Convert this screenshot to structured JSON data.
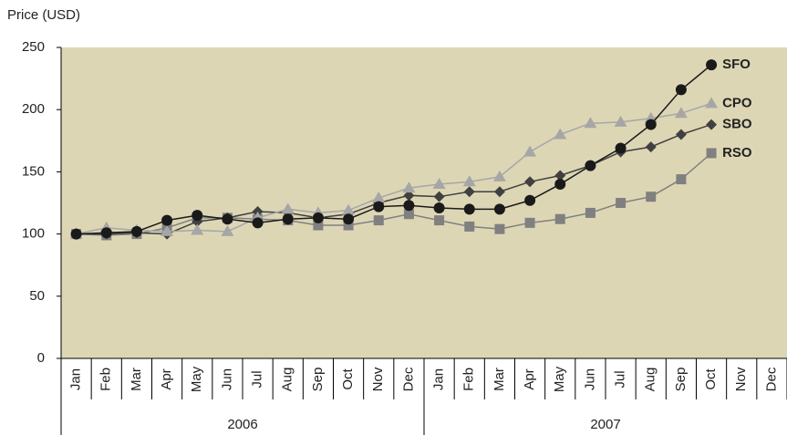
{
  "chart_data": {
    "type": "line",
    "y_label": "Price (USD)",
    "categories": [
      "Jan",
      "Feb",
      "Mar",
      "Apr",
      "May",
      "Jun",
      "Jul",
      "Aug",
      "Sep",
      "Oct",
      "Nov",
      "Dec",
      "Jan",
      "Feb",
      "Mar",
      "Apr",
      "May",
      "Jun",
      "Jul",
      "Aug",
      "Sep",
      "Oct",
      "Nov",
      "Dec"
    ],
    "groups": [
      "2006",
      "2007"
    ],
    "ylim": [
      0,
      250
    ],
    "yticks": [
      0,
      50,
      100,
      150,
      200,
      250
    ],
    "background": "#ddd6b5",
    "series": [
      {
        "name": "SFO",
        "color": "#1a1a1a",
        "marker": "circle",
        "values": [
          100,
          101,
          102,
          111,
          115,
          112,
          109,
          112,
          113,
          112,
          122,
          123,
          121,
          120,
          120,
          127,
          140,
          155,
          169,
          188,
          216,
          236,
          null,
          null
        ]
      },
      {
        "name": "CPO",
        "color": "#a6a6a6",
        "marker": "triangle",
        "values": [
          100,
          105,
          103,
          102,
          103,
          102,
          113,
          120,
          117,
          119,
          129,
          137,
          140,
          142,
          146,
          166,
          180,
          189,
          190,
          193,
          197,
          205,
          null,
          null
        ]
      },
      {
        "name": "SBO",
        "color": "#404040",
        "marker": "diamond",
        "values": [
          100,
          100,
          101,
          100,
          110,
          113,
          118,
          117,
          113,
          116,
          125,
          131,
          130,
          134,
          134,
          142,
          147,
          155,
          166,
          170,
          180,
          188,
          null,
          null
        ]
      },
      {
        "name": "RSO",
        "color": "#808080",
        "marker": "square",
        "values": [
          100,
          99,
          100,
          105,
          113,
          113,
          112,
          111,
          107,
          107,
          111,
          116,
          111,
          106,
          104,
          109,
          112,
          117,
          125,
          130,
          144,
          165,
          null,
          null
        ]
      }
    ]
  }
}
